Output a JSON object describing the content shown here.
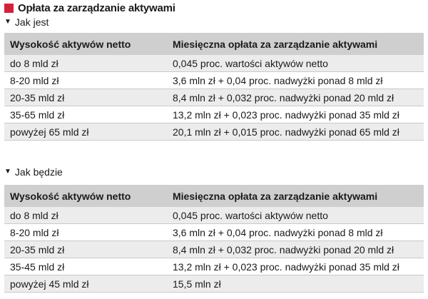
{
  "title": "Opłata za zarządzanie aktywami",
  "sections": [
    {
      "label": "Jak jest",
      "headers": [
        "Wysokość aktywów netto",
        "Miesięczna opłata za zarządzanie aktywami"
      ],
      "rows": [
        [
          "do 8 mld zł",
          "0,045 proc. wartości aktywów netto"
        ],
        [
          "8-20 mld zł",
          "3,6 mln zł + 0,04 proc. nadwyżki ponad 8 mld zł"
        ],
        [
          "20-35 mld zł",
          "8,4 mln zł + 0,032 proc. nadwyżki ponad 20 mld zł"
        ],
        [
          "35-65 mld zł",
          "13,2 mln zł + 0,023 proc. nadwyżki ponad 35 mld zł"
        ],
        [
          "powyżej 65 mld zł",
          "20,1 mln zł + 0,015 proc. nadwyżki ponad 65 mld zł"
        ]
      ]
    },
    {
      "label": "Jak będzie",
      "headers": [
        "Wysokość aktywów netto",
        "Miesięczna opłata za zarządzanie aktywami"
      ],
      "rows": [
        [
          "do 8 mld zł",
          "0,045 proc. wartości aktywów netto"
        ],
        [
          "8-20 mld zł",
          "3,6 mln zł + 0,04 proc. nadwyżki ponad 8 mld zł"
        ],
        [
          "20-35 mld zł",
          "8,4 mln zł + 0,032 proc. nadwyżki ponad 20 mld zł"
        ],
        [
          "35-45 mld zł",
          "13,2 mln zł + 0,023 proc. nadwyżki ponad 35 mld zł"
        ],
        [
          "powyżej 45 mld zł",
          "15,5 mln zł"
        ]
      ]
    }
  ],
  "colors": {
    "accent": "#d6203a",
    "header_bg": "#cfcfcf",
    "row_shade": "#ececec"
  },
  "icons": {
    "title": "red-square-icon",
    "section": "down-arrow-icon"
  }
}
